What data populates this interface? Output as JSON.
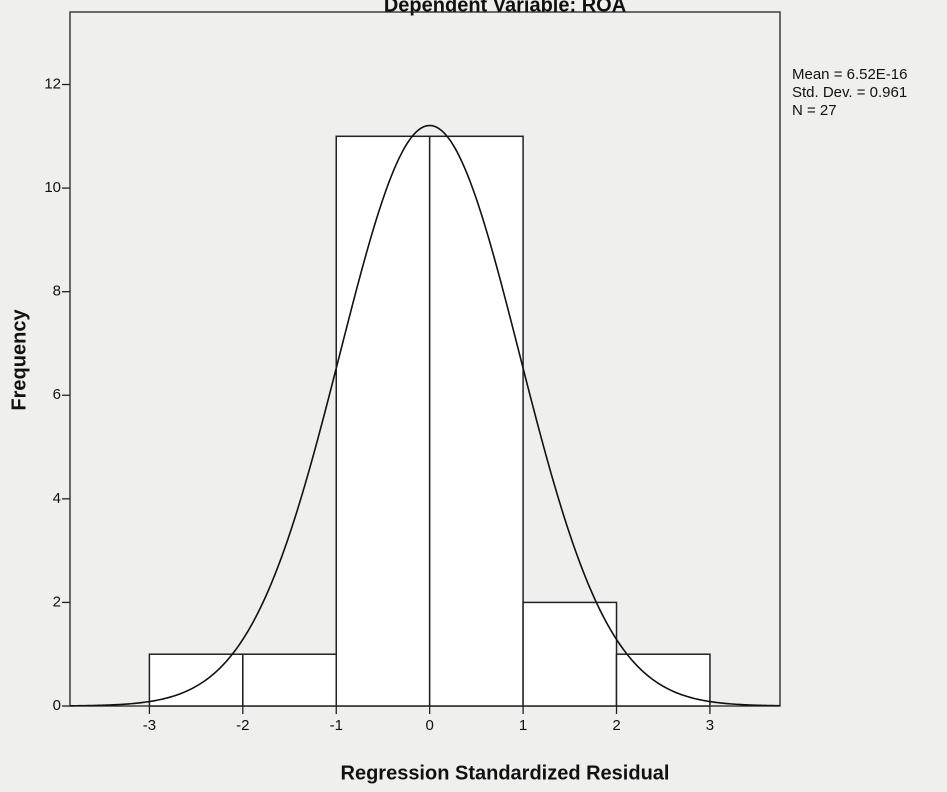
{
  "chart_data": {
    "type": "histogram",
    "title": "Dependent Variable: ROA",
    "xlabel": "Regression Standardized Residual",
    "ylabel": "Frequency",
    "bins": [
      -3,
      -2,
      -1,
      0,
      1,
      2,
      3
    ],
    "counts": [
      1,
      1,
      11,
      11,
      2,
      1
    ],
    "xlim": [
      -3.85,
      3.75
    ],
    "ylim": [
      0,
      13.4
    ],
    "xticks": [
      -3,
      -2,
      -1,
      0,
      1,
      2,
      3
    ],
    "yticks": [
      0,
      2,
      4,
      6,
      8,
      10,
      12
    ],
    "color": "#ffffff",
    "normal_curve": {
      "mean": {
        "value": 6.52e-16,
        "label": "Mean = 6.52E-16"
      },
      "std_dev": {
        "value": 0.961,
        "label": "Std. Dev. = 0.961"
      },
      "n": {
        "value": 27,
        "label": "N = 27"
      }
    }
  }
}
